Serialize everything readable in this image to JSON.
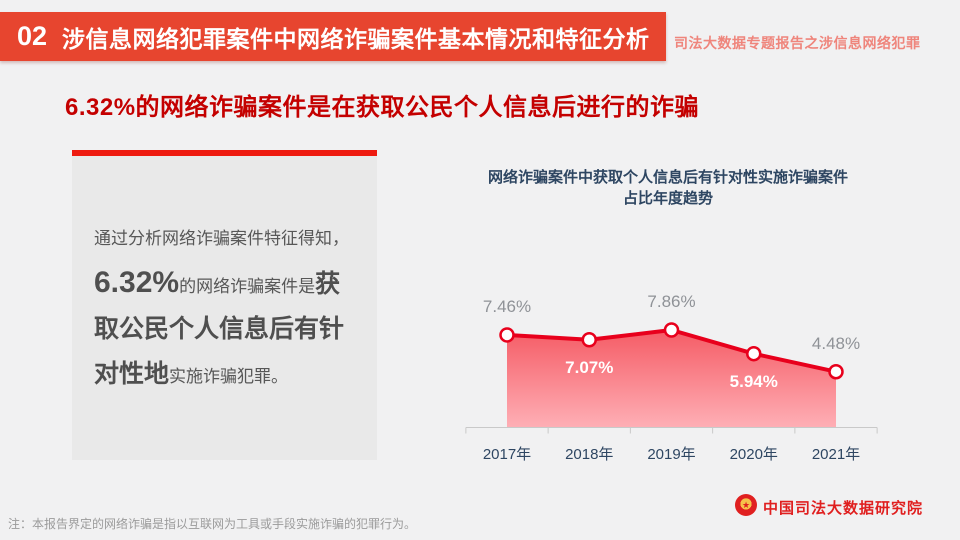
{
  "header": {
    "section_number": "02",
    "title": "涉信息网络犯罪案件中网络诈骗案件基本情况和特征分析",
    "subtitle": "司法大数据专题报告之涉信息网络犯罪"
  },
  "headline": "6.32%的网络诈骗案件是在获取公民个人信息后进行的诈骗",
  "info_box": {
    "line1": "通过分析网络诈骗案件特征得知，",
    "highlight_pct": "6.32%",
    "mid_regular": "的网络诈骗案件是",
    "bold_text": "获取公民个人信息后有针对性地",
    "end_regular": "实施诈骗犯罪。"
  },
  "chart_data": {
    "type": "area",
    "title_line1": "网络诈骗案件中获取个人信息后有针对性实施诈骗案件",
    "title_line2": "占比年度趋势",
    "categories": [
      "2017年",
      "2018年",
      "2019年",
      "2020年",
      "2021年"
    ],
    "values": [
      7.46,
      7.07,
      7.86,
      5.94,
      4.48
    ],
    "labels": [
      "7.46%",
      "7.07%",
      "7.86%",
      "5.94%",
      "4.48%"
    ],
    "label_positions": [
      "above",
      "below",
      "above",
      "below",
      "above"
    ],
    "ylim": [
      0,
      9
    ],
    "grid": false,
    "legend": false,
    "colors": {
      "line": "#e8001c",
      "marker_fill": "#ffffff",
      "area_top": "#f5545e",
      "area_bottom": "#ffabb2",
      "axis": "#c9c9c9",
      "label_above": "#8f9297",
      "label_below": "#ffffff"
    }
  },
  "footer": {
    "note": "注：本报告界定的网络诈骗是指以互联网为工具或手段实施诈骗的犯罪行为。",
    "org_name": "中国司法大数据研究院"
  }
}
